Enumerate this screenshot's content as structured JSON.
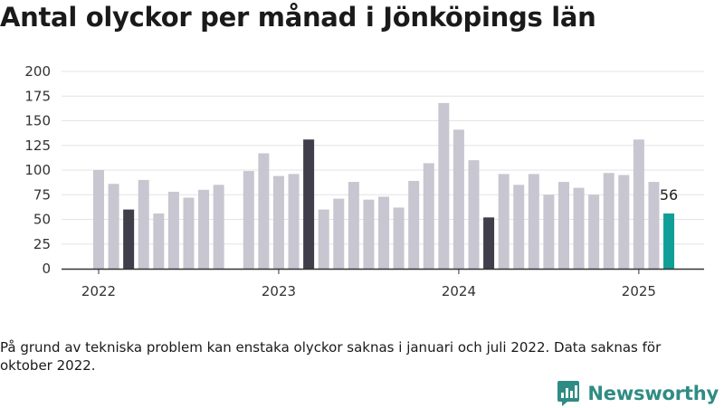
{
  "title": "Antal olyckor per månad i Jönköpings län",
  "note": "På grund av tekniska problem kan enstaka olyckor saknas i januari och juli 2022. Data saknas för oktober 2022.",
  "brand": "Newsworthy",
  "colors": {
    "bar_default": "#c8c6d0",
    "bar_highlight": "#3f3e4a",
    "bar_latest": "#0f9f98",
    "grid": "#e3e3e3",
    "axis": "#333333",
    "brand": "#2f8c84"
  },
  "chart_data": {
    "type": "bar",
    "title": "Antal olyckor per månad i Jönköpings län",
    "xlabel": "",
    "ylabel": "",
    "ylim": [
      0,
      200
    ],
    "yticks": [
      "0",
      "25",
      "50",
      "75",
      "100",
      "125",
      "150",
      "175",
      "200"
    ],
    "xticks": [
      {
        "label": "2022",
        "index": 0
      },
      {
        "label": "2023",
        "index": 12
      },
      {
        "label": "2024",
        "index": 24
      },
      {
        "label": "2025",
        "index": 36
      }
    ],
    "grid": true,
    "categories": [
      "2022-01",
      "2022-02",
      "2022-03",
      "2022-04",
      "2022-05",
      "2022-06",
      "2022-07",
      "2022-08",
      "2022-09",
      "2022-10",
      "2022-11",
      "2022-12",
      "2023-01",
      "2023-02",
      "2023-03",
      "2023-04",
      "2023-05",
      "2023-06",
      "2023-07",
      "2023-08",
      "2023-09",
      "2023-10",
      "2023-11",
      "2023-12",
      "2024-01",
      "2024-02",
      "2024-03",
      "2024-04",
      "2024-05",
      "2024-06",
      "2024-07",
      "2024-08",
      "2024-09",
      "2024-10",
      "2024-11",
      "2024-12",
      "2025-01",
      "2025-02",
      "2025-03"
    ],
    "values": [
      100,
      86,
      60,
      90,
      56,
      78,
      72,
      80,
      85,
      null,
      99,
      117,
      94,
      96,
      131,
      60,
      71,
      88,
      70,
      73,
      62,
      89,
      107,
      168,
      141,
      110,
      52,
      96,
      85,
      96,
      75,
      88,
      82,
      75,
      97,
      95,
      131,
      88,
      56
    ],
    "highlight": [
      "2022-03",
      "2023-03",
      "2024-03"
    ],
    "latest": "2025-03",
    "value_label": "56"
  }
}
